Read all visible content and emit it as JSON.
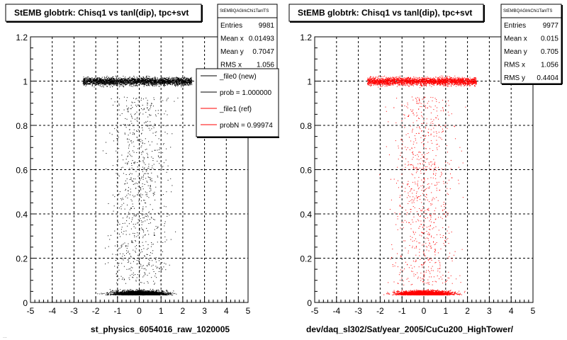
{
  "footer_text": "...",
  "colors": {
    "reference": "#000000",
    "new": "#ff0000"
  },
  "chart_data": [
    {
      "type": "scatter",
      "title": "StEMB globtrk: Chisq1 vs tanl(dip), tpc+svt",
      "xlabel": "st_physics_6054016_raw_1020005",
      "ylabel": "",
      "xlim": [
        -5,
        5
      ],
      "ylim": [
        0,
        1.2
      ],
      "x_ticks": [
        "-5",
        "-4",
        "-3",
        "-2",
        "-1",
        "0",
        "1",
        "2",
        "3",
        "4",
        "5"
      ],
      "y_ticks": [
        "0",
        "0.2",
        "0.4",
        "0.6",
        "0.8",
        "1",
        "1.2"
      ],
      "grid": true,
      "marker_color": "#000000",
      "series": [
        {
          "points_description": "dense band at y≈1 for x in [-2.6,2.4], dense band at y≈0.04 for x in [-2.9,2.9], sparse points between"
        }
      ],
      "stats": {
        "header": "StEMBQAGlrkChi1TanlTS",
        "rows": [
          {
            "label": "Entries",
            "value": "9981"
          },
          {
            "label": "Mean x",
            "value": "0.01493"
          },
          {
            "label": "Mean y",
            "value": "0.7047"
          },
          {
            "label": "RMS x",
            "value": "1.056"
          }
        ]
      },
      "legend": {
        "entries": [
          {
            "label": "_file0 (new)",
            "color": "#000000"
          },
          {
            "label": "prob = 1.000000",
            "color": "#000000"
          },
          {
            "label": "_file1 (ref)",
            "color": "#ff0000"
          },
          {
            "label": "probN = 0.99974",
            "color": "#ff0000"
          }
        ]
      }
    },
    {
      "type": "scatter",
      "title": "StEMB globtrk: Chisq1 vs tanl(dip), tpc+svt",
      "xlabel": "dev/daq_sl302/Sat/year_2005/CuCu200_HighTower/",
      "ylabel": "",
      "xlim": [
        -5,
        5
      ],
      "ylim": [
        0,
        1.2
      ],
      "x_ticks": [
        "-5",
        "-4",
        "-3",
        "-2",
        "-1",
        "0",
        "1",
        "2",
        "3",
        "4",
        "5"
      ],
      "y_ticks": [
        "0",
        "0.2",
        "0.4",
        "0.6",
        "0.8",
        "1",
        "1.2"
      ],
      "grid": true,
      "marker_color": "#ff0000",
      "series": [
        {
          "points_description": "dense band at y≈1 for x in [-2.6,2.5], dense band at y≈0.04 for x in [-2.9,2.9], sparse points between"
        }
      ],
      "stats": {
        "header": "StEMBQAGlrkChi1TanlTS",
        "rows": [
          {
            "label": "Entries",
            "value": "9977"
          },
          {
            "label": "Mean x",
            "value": "0.015"
          },
          {
            "label": "Mean y",
            "value": "0.705"
          },
          {
            "label": "RMS x",
            "value": "1.056"
          },
          {
            "label": "RMS y",
            "value": "0.4404"
          }
        ]
      }
    }
  ]
}
